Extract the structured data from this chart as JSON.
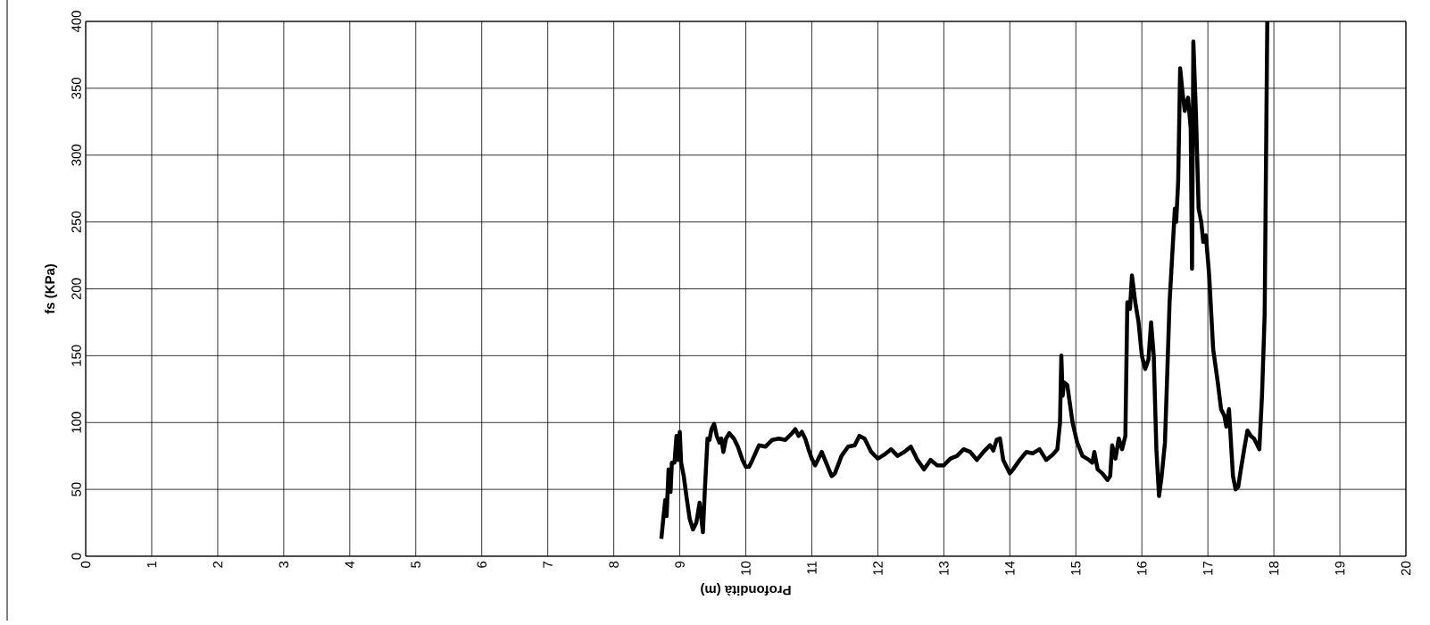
{
  "chart_data": {
    "type": "line",
    "xlabel": "Profondità (m)",
    "ylabel": "fs (KPa)",
    "xlim": [
      0,
      20
    ],
    "xticks": [
      0,
      1,
      2,
      3,
      4,
      5,
      6,
      7,
      8,
      9,
      10,
      11,
      12,
      13,
      14,
      15,
      16,
      17,
      18,
      19,
      20
    ],
    "ylim": [
      0,
      400
    ],
    "yticks": [
      0,
      50,
      100,
      150,
      200,
      250,
      300,
      350,
      400
    ],
    "grid": true,
    "marker": "none",
    "line_style": "solid",
    "series": [
      {
        "color": "#000000",
        "x": [
          8.72,
          8.75,
          8.78,
          8.8,
          8.83,
          8.86,
          8.88,
          8.92,
          8.95,
          8.97,
          9.0,
          9.02,
          9.06,
          9.1,
          9.15,
          9.2,
          9.25,
          9.3,
          9.35,
          9.38,
          9.42,
          9.45,
          9.48,
          9.52,
          9.56,
          9.6,
          9.63,
          9.66,
          9.7,
          9.75,
          9.82,
          9.88,
          9.95,
          10.0,
          10.05,
          10.1,
          10.2,
          10.3,
          10.4,
          10.5,
          10.6,
          10.7,
          10.75,
          10.8,
          10.85,
          10.9,
          10.95,
          11.0,
          11.05,
          11.15,
          11.2,
          11.3,
          11.35,
          11.45,
          11.55,
          11.65,
          11.72,
          11.8,
          11.9,
          12.0,
          12.1,
          12.2,
          12.3,
          12.4,
          12.5,
          12.6,
          12.7,
          12.8,
          12.9,
          13.0,
          13.1,
          13.2,
          13.3,
          13.4,
          13.5,
          13.6,
          13.7,
          13.75,
          13.8,
          13.85,
          13.9,
          14.0,
          14.05,
          14.15,
          14.25,
          14.35,
          14.45,
          14.55,
          14.65,
          14.72,
          14.76,
          14.78,
          14.8,
          14.82,
          14.87,
          14.95,
          15.02,
          15.1,
          15.2,
          15.25,
          15.28,
          15.33,
          15.4,
          15.48,
          15.52,
          15.55,
          15.6,
          15.65,
          15.7,
          15.75,
          15.78,
          15.82,
          15.85,
          15.9,
          15.95,
          16.0,
          16.05,
          16.1,
          16.14,
          16.18,
          16.22,
          16.26,
          16.3,
          16.35,
          16.42,
          16.5,
          16.52,
          16.55,
          16.58,
          16.62,
          16.65,
          16.7,
          16.74,
          16.76,
          16.78,
          16.82,
          16.86,
          16.9,
          16.93,
          16.97,
          17.02,
          17.08,
          17.15,
          17.2,
          17.25,
          17.28,
          17.32,
          17.38,
          17.42,
          17.46,
          17.5,
          17.55,
          17.6,
          17.65,
          17.7,
          17.78,
          17.82,
          17.86,
          17.9
        ],
        "values": [
          13,
          28,
          42,
          30,
          65,
          48,
          70,
          70,
          90,
          72,
          93,
          70,
          60,
          45,
          28,
          20,
          25,
          40,
          18,
          50,
          88,
          87,
          95,
          99,
          90,
          85,
          88,
          78,
          88,
          92,
          88,
          82,
          72,
          67,
          67,
          72,
          83,
          82,
          87,
          88,
          87,
          92,
          95,
          90,
          93,
          88,
          80,
          73,
          68,
          78,
          72,
          60,
          62,
          75,
          82,
          83,
          90,
          88,
          78,
          73,
          76,
          80,
          75,
          78,
          82,
          72,
          65,
          72,
          68,
          68,
          73,
          75,
          80,
          78,
          72,
          78,
          83,
          79,
          87,
          88,
          72,
          62,
          65,
          72,
          78,
          77,
          80,
          72,
          76,
          80,
          100,
          150,
          120,
          130,
          128,
          100,
          85,
          75,
          72,
          70,
          78,
          65,
          62,
          57,
          60,
          83,
          73,
          88,
          80,
          90,
          190,
          185,
          210,
          190,
          175,
          150,
          140,
          147,
          175,
          150,
          80,
          45,
          60,
          85,
          190,
          260,
          250,
          280,
          365,
          345,
          333,
          343,
          320,
          215,
          385,
          330,
          260,
          250,
          235,
          240,
          210,
          155,
          130,
          110,
          105,
          97,
          110,
          60,
          50,
          52,
          65,
          80,
          94,
          90,
          88,
          80,
          120,
          180,
          400
        ]
      }
    ]
  }
}
